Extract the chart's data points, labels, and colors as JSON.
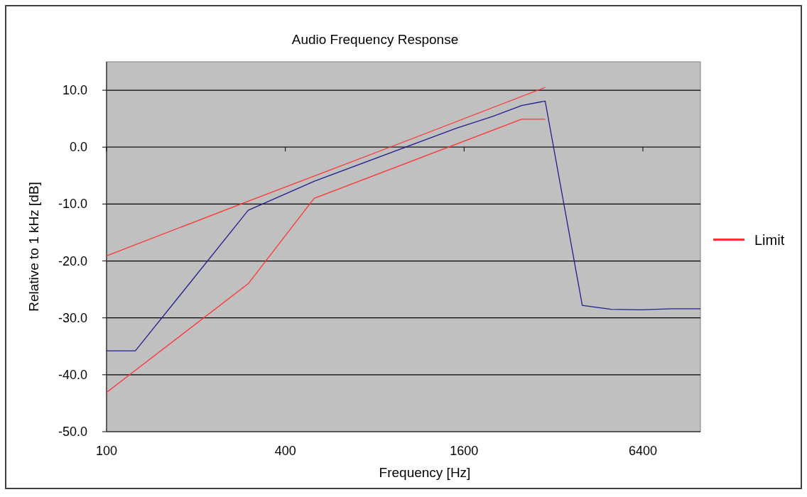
{
  "chart_data": {
    "type": "line",
    "title": "Audio Frequency Response",
    "xlabel": "Frequency [Hz]",
    "ylabel": "Relative to 1 kHz [dB]",
    "log": "x",
    "xlim": [
      100,
      10000
    ],
    "xticks": [
      100,
      400,
      1600,
      6400
    ],
    "ylim": [
      -50,
      15
    ],
    "yticks": [
      {
        "value": -50,
        "label": "-50.0"
      },
      {
        "value": -40,
        "label": "-40.0"
      },
      {
        "value": -30,
        "label": "-30.0"
      },
      {
        "value": -20,
        "label": "-20.0"
      },
      {
        "value": -10,
        "label": "-10.0"
      },
      {
        "value": 0,
        "label": "0.0"
      },
      {
        "value": 10,
        "label": "10.0"
      }
    ],
    "grid": "y",
    "legend": "right",
    "series": [
      {
        "color": "#1f1f8f",
        "x": [
          100,
          125,
          300,
          500,
          1500,
          2000,
          2500,
          3000,
          4000,
          5000,
          6300,
          8000,
          10000
        ],
        "values": [
          -35.8,
          -35.8,
          -11.1,
          -6,
          3.3,
          5.4,
          7.3,
          8.1,
          -27.8,
          -28.5,
          -28.6,
          -28.4,
          -28.4
        ]
      },
      {
        "name": "Limit",
        "color": "#ff3333",
        "x": [
          100,
          300,
          1000,
          3000
        ],
        "values": [
          -19.1,
          -9.5,
          0.9,
          10.5
        ]
      },
      {
        "color": "#ff3333",
        "x": [
          100,
          300,
          500,
          2500,
          3000
        ],
        "values": [
          -43.1,
          -24,
          -9,
          4.9,
          4.9
        ]
      }
    ]
  }
}
